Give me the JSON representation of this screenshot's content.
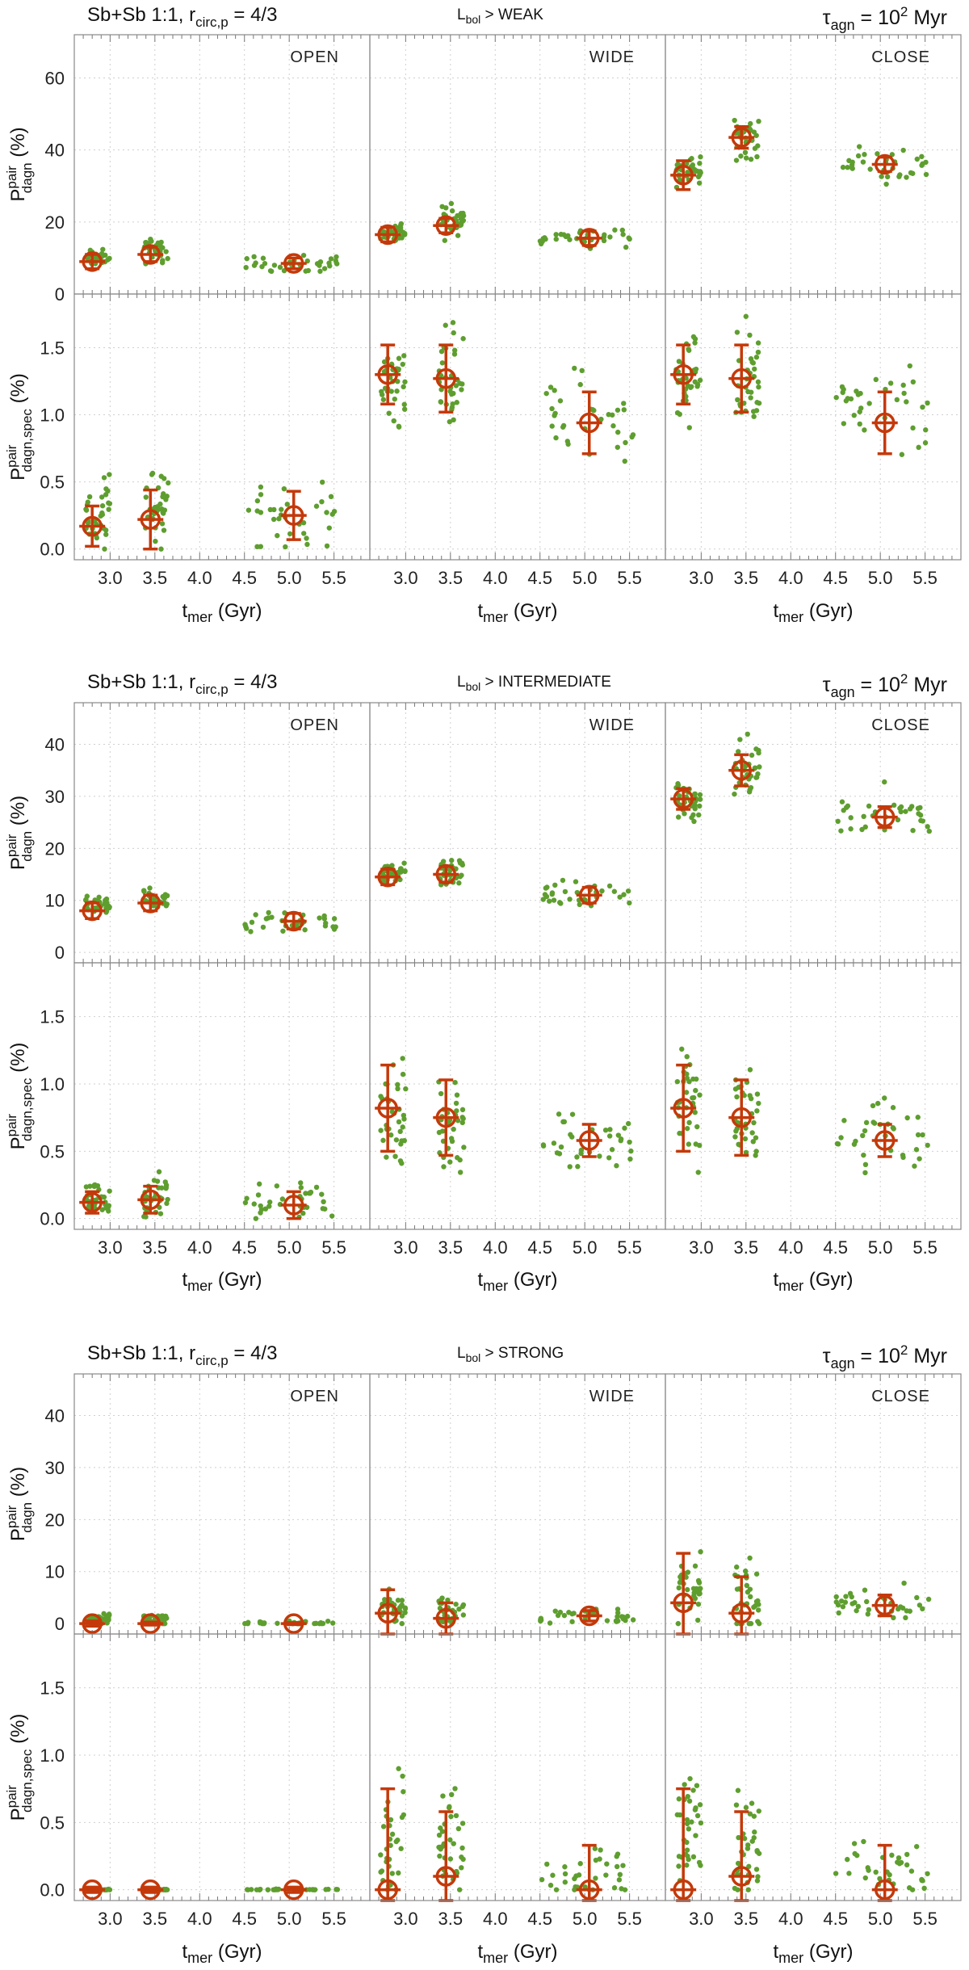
{
  "colors": {
    "points": "#5e9e2f",
    "marker": "#c4390a",
    "frame": "#888888",
    "grid": "#cfcfcf"
  },
  "common": {
    "left_title": "Sb+Sb 1:1, r",
    "left_title_sub": "circ,p",
    "left_title_tail": " = 4/3",
    "right_title": "τ",
    "right_title_sub": "agn",
    "right_title_tail": " = 10",
    "right_title_sup": "2",
    "right_title_unit": " Myr",
    "lbol": "L",
    "lbol_sub": "bol",
    "xlabel": "t",
    "xlabel_sub": "mer",
    "xlabel_tail": " (Gyr)",
    "ylabel_top": "P",
    "ylabel_top_sup": "pair",
    "ylabel_top_sub": "dagn",
    "ylabel_top_tail": "  (%)",
    "ylabel_bottom": "P",
    "ylabel_bottom_sup": "pair",
    "ylabel_bottom_sub": "dagn,spec",
    "ylabel_bottom_tail": "  (%)",
    "panel_labels": [
      "OPEN",
      "WIDE",
      "CLOSE"
    ],
    "xticks": [
      "3.0",
      "3.5",
      "4.0",
      "4.5",
      "5.0",
      "5.5"
    ]
  },
  "chart_data": [
    {
      "type": "scatter",
      "lbol_threshold": " > WEAK",
      "xlim": [
        2.6,
        5.9
      ],
      "top": {
        "ylim": [
          0,
          72
        ],
        "yticks": [
          0,
          20,
          40,
          60
        ],
        "panels": [
          {
            "label": "OPEN",
            "medians": [
              [
                2.8,
                9,
                2
              ],
              [
                3.45,
                11,
                2
              ],
              [
                5.05,
                8.5,
                1.5
              ]
            ],
            "scatter_center": [
              10,
              12,
              8.5
            ],
            "scatter_spread": [
              2,
              3,
              2
            ]
          },
          {
            "label": "WIDE",
            "medians": [
              [
                2.8,
                16.5,
                2
              ],
              [
                3.45,
                19,
                2
              ],
              [
                5.05,
                15.5,
                2
              ]
            ],
            "scatter_center": [
              17,
              20,
              16
            ],
            "scatter_spread": [
              2.5,
              4,
              2.5
            ]
          },
          {
            "label": "CLOSE",
            "medians": [
              [
                2.8,
                33,
                4
              ],
              [
                3.45,
                43.5,
                3
              ],
              [
                5.05,
                36,
                2
              ]
            ],
            "scatter_center": [
              34,
              43,
              36
            ],
            "scatter_spread": [
              4,
              6,
              4
            ]
          }
        ]
      },
      "bottom": {
        "ylim": [
          -0.08,
          1.9
        ],
        "yticks": [
          0.0,
          0.5,
          1.0,
          1.5
        ],
        "panels": [
          {
            "label": "OPEN",
            "medians": [
              [
                2.8,
                0.17,
                0.15
              ],
              [
                3.45,
                0.22,
                0.22
              ],
              [
                5.05,
                0.25,
                0.18
              ]
            ],
            "scatter_center": [
              0.3,
              0.3,
              0.25
            ],
            "scatter_spread": [
              0.25,
              0.25,
              0.2
            ]
          },
          {
            "label": "WIDE",
            "medians": [
              [
                2.8,
                1.3,
                0.22
              ],
              [
                3.45,
                1.27,
                0.25
              ],
              [
                5.05,
                0.94,
                0.23
              ]
            ],
            "scatter_center": [
              1.25,
              1.25,
              1.0
            ],
            "scatter_spread": [
              0.3,
              0.35,
              0.3
            ]
          },
          {
            "label": "CLOSE",
            "medians": [
              [
                2.8,
                1.3,
                0.22
              ],
              [
                3.45,
                1.27,
                0.25
              ],
              [
                5.05,
                0.94,
                0.23
              ]
            ],
            "scatter_center": [
              1.25,
              1.25,
              1.0
            ],
            "scatter_spread": [
              0.3,
              0.35,
              0.3
            ]
          }
        ]
      }
    },
    {
      "type": "scatter",
      "lbol_threshold": " > INTERMEDIATE",
      "xlim": [
        2.6,
        5.9
      ],
      "top": {
        "ylim": [
          -2,
          48
        ],
        "yticks": [
          0,
          10,
          20,
          30,
          40
        ],
        "panels": [
          {
            "label": "OPEN",
            "medians": [
              [
                2.8,
                8,
                1.5
              ],
              [
                3.45,
                9.5,
                1.5
              ],
              [
                5.05,
                6,
                1.5
              ]
            ],
            "scatter_center": [
              9,
              10,
              5.5
            ],
            "scatter_spread": [
              1.5,
              2,
              2
            ]
          },
          {
            "label": "WIDE",
            "medians": [
              [
                2.8,
                14.5,
                1.5
              ],
              [
                3.45,
                15,
                1.5
              ],
              [
                5.05,
                11,
                1.5
              ]
            ],
            "scatter_center": [
              15,
              15.5,
              11
            ],
            "scatter_spread": [
              2,
              2.5,
              2.5
            ]
          },
          {
            "label": "CLOSE",
            "medians": [
              [
                2.8,
                29.5,
                2
              ],
              [
                3.45,
                35,
                3
              ],
              [
                5.05,
                26,
                2
              ]
            ],
            "scatter_center": [
              29,
              35,
              26
            ],
            "scatter_spread": [
              3.5,
              5,
              5
            ]
          }
        ]
      },
      "bottom": {
        "ylim": [
          -0.08,
          1.9
        ],
        "yticks": [
          0.0,
          0.5,
          1.0,
          1.5
        ],
        "panels": [
          {
            "label": "OPEN",
            "medians": [
              [
                2.8,
                0.12,
                0.08
              ],
              [
                3.45,
                0.14,
                0.1
              ],
              [
                5.05,
                0.1,
                0.1
              ]
            ],
            "scatter_center": [
              0.15,
              0.17,
              0.12
            ],
            "scatter_spread": [
              0.12,
              0.15,
              0.12
            ]
          },
          {
            "label": "WIDE",
            "medians": [
              [
                2.8,
                0.82,
                0.32
              ],
              [
                3.45,
                0.75,
                0.28
              ],
              [
                5.05,
                0.58,
                0.12
              ]
            ],
            "scatter_center": [
              0.8,
              0.75,
              0.6
            ],
            "scatter_spread": [
              0.4,
              0.4,
              0.25
            ]
          },
          {
            "label": "CLOSE",
            "medians": [
              [
                2.8,
                0.82,
                0.32
              ],
              [
                3.45,
                0.75,
                0.28
              ],
              [
                5.05,
                0.58,
                0.12
              ]
            ],
            "scatter_center": [
              0.8,
              0.75,
              0.6
            ],
            "scatter_spread": [
              0.4,
              0.4,
              0.25
            ]
          }
        ]
      }
    },
    {
      "type": "scatter",
      "lbol_threshold": " > STRONG",
      "xlim": [
        2.6,
        5.9
      ],
      "top": {
        "ylim": [
          -2,
          48
        ],
        "yticks": [
          0,
          10,
          20,
          30,
          40
        ],
        "panels": [
          {
            "label": "OPEN",
            "medians": [
              [
                2.8,
                0,
                0.5
              ],
              [
                3.45,
                0,
                0.3
              ],
              [
                5.05,
                0,
                0.2
              ]
            ],
            "scatter_center": [
              1,
              0.8,
              0.1
            ],
            "scatter_spread": [
              1.2,
              1,
              0.3
            ]
          },
          {
            "label": "WIDE",
            "medians": [
              [
                2.8,
                2,
                4.5
              ],
              [
                3.45,
                1,
                3
              ],
              [
                5.05,
                1.5,
                1
              ]
            ],
            "scatter_center": [
              3,
              2.5,
              1.5
            ],
            "scatter_spread": [
              3,
              3,
              1.5
            ]
          },
          {
            "label": "CLOSE",
            "medians": [
              [
                2.8,
                4,
                9.5
              ],
              [
                3.45,
                2,
                7
              ],
              [
                5.05,
                3.5,
                2
              ]
            ],
            "scatter_center": [
              6,
              5,
              4
            ],
            "scatter_spread": [
              6,
              6,
              3
            ]
          }
        ]
      },
      "bottom": {
        "ylim": [
          -0.08,
          1.9
        ],
        "yticks": [
          0.0,
          0.5,
          1.0,
          1.5
        ],
        "panels": [
          {
            "label": "OPEN",
            "medians": [
              [
                2.8,
                0,
                0.02
              ],
              [
                3.45,
                0,
                0.02
              ],
              [
                5.05,
                0,
                0.02
              ]
            ],
            "scatter_center": [
              0,
              0,
              0
            ],
            "scatter_spread": [
              0.005,
              0.005,
              0.005
            ]
          },
          {
            "label": "WIDE",
            "medians": [
              [
                2.8,
                0,
                0.75
              ],
              [
                3.45,
                0.1,
                0.48
              ],
              [
                5.05,
                0,
                0.33
              ]
            ],
            "scatter_center": [
              0.45,
              0.35,
              0.15
            ],
            "scatter_spread": [
              0.45,
              0.35,
              0.2
            ]
          },
          {
            "label": "CLOSE",
            "medians": [
              [
                2.8,
                0,
                0.75
              ],
              [
                3.45,
                0.1,
                0.48
              ],
              [
                5.05,
                0,
                0.33
              ]
            ],
            "scatter_center": [
              0.45,
              0.35,
              0.15
            ],
            "scatter_spread": [
              0.45,
              0.35,
              0.2
            ]
          }
        ]
      }
    }
  ]
}
